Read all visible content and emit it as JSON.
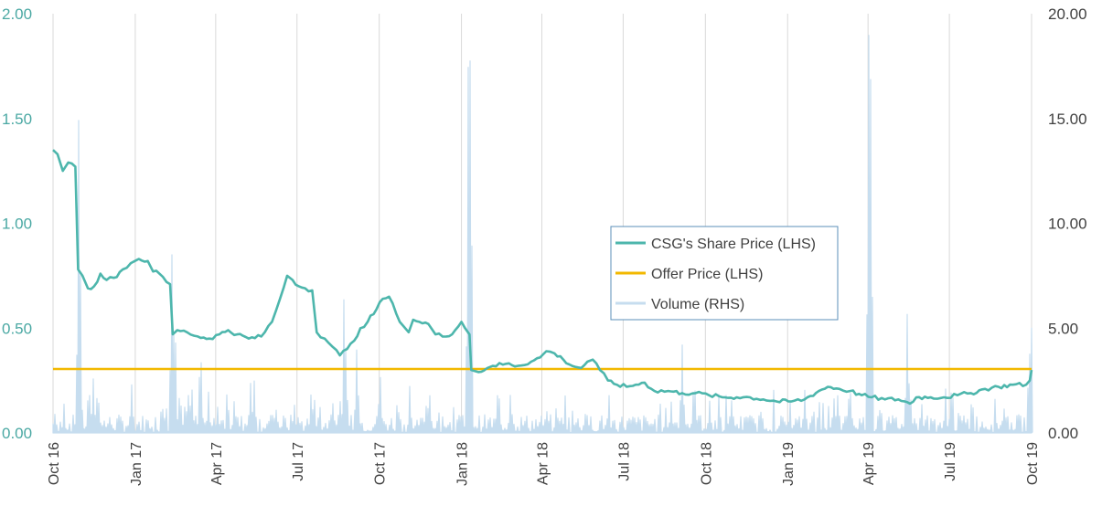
{
  "chart_data": {
    "type": "line",
    "x_axis": {
      "type": "date",
      "start": "2016-10-01",
      "end": "2019-10-01",
      "tick_labels": [
        "Oct 16",
        "Jan 17",
        "Apr 17",
        "Jul 17",
        "Oct 17",
        "Jan 18",
        "Apr 18",
        "Jul 18",
        "Oct 18",
        "Jan 19",
        "Apr 19",
        "Jul 19",
        "Oct 19"
      ],
      "tick_dates": [
        "2016-10-01",
        "2017-01-01",
        "2017-04-01",
        "2017-07-01",
        "2017-10-01",
        "2018-01-01",
        "2018-04-01",
        "2018-07-01",
        "2018-10-01",
        "2019-01-01",
        "2019-04-01",
        "2019-07-01",
        "2019-10-01"
      ],
      "grid": true
    },
    "y_left": {
      "min": 0,
      "max": 2.0,
      "tick_labels": [
        "0.00",
        "0.50",
        "1.00",
        "1.50",
        "2.00"
      ],
      "tick_values": [
        0,
        0.5,
        1.0,
        1.5,
        2.0
      ]
    },
    "y_right": {
      "min": 0,
      "max": 20.0,
      "tick_labels": [
        "0.00",
        "5.00",
        "10.00",
        "15.00",
        "20.00"
      ],
      "tick_values": [
        0,
        5,
        10,
        15,
        20
      ]
    },
    "legend": {
      "position": "center-right",
      "items": [
        {
          "label": "CSG's Share Price (LHS)",
          "color": "#4db6ac"
        },
        {
          "label": "Offer Price (LHS)",
          "color": "#f2b800"
        },
        {
          "label": "Volume (RHS)",
          "color": "#c6ddef"
        }
      ]
    },
    "series": [
      {
        "name": "CSG's Share Price (LHS)",
        "axis": "left",
        "color": "#4db6ac",
        "points": [
          [
            "2016-10-01",
            1.35
          ],
          [
            "2016-10-06",
            1.33
          ],
          [
            "2016-10-12",
            1.25
          ],
          [
            "2016-10-18",
            1.29
          ],
          [
            "2016-10-26",
            1.27
          ],
          [
            "2016-10-29",
            0.78
          ],
          [
            "2016-11-03",
            0.75
          ],
          [
            "2016-11-09",
            0.69
          ],
          [
            "2016-11-16",
            0.7
          ],
          [
            "2016-11-23",
            0.76
          ],
          [
            "2016-11-30",
            0.73
          ],
          [
            "2016-12-08",
            0.74
          ],
          [
            "2016-12-18",
            0.78
          ],
          [
            "2016-12-27",
            0.81
          ],
          [
            "2017-01-05",
            0.83
          ],
          [
            "2017-01-15",
            0.82
          ],
          [
            "2017-01-21",
            0.77
          ],
          [
            "2017-01-28",
            0.76
          ],
          [
            "2017-02-05",
            0.72
          ],
          [
            "2017-02-09",
            0.71
          ],
          [
            "2017-02-12",
            0.47
          ],
          [
            "2017-02-17",
            0.49
          ],
          [
            "2017-02-28",
            0.48
          ],
          [
            "2017-03-12",
            0.46
          ],
          [
            "2017-03-25",
            0.45
          ],
          [
            "2017-04-05",
            0.47
          ],
          [
            "2017-04-15",
            0.49
          ],
          [
            "2017-04-25",
            0.47
          ],
          [
            "2017-05-08",
            0.45
          ],
          [
            "2017-05-22",
            0.46
          ],
          [
            "2017-06-03",
            0.53
          ],
          [
            "2017-06-12",
            0.64
          ],
          [
            "2017-06-20",
            0.75
          ],
          [
            "2017-06-26",
            0.73
          ],
          [
            "2017-07-03",
            0.7
          ],
          [
            "2017-07-10",
            0.69
          ],
          [
            "2017-07-18",
            0.68
          ],
          [
            "2017-07-23",
            0.48
          ],
          [
            "2017-08-01",
            0.45
          ],
          [
            "2017-08-10",
            0.41
          ],
          [
            "2017-08-18",
            0.37
          ],
          [
            "2017-08-26",
            0.4
          ],
          [
            "2017-09-03",
            0.44
          ],
          [
            "2017-09-10",
            0.5
          ],
          [
            "2017-09-18",
            0.53
          ],
          [
            "2017-09-28",
            0.59
          ],
          [
            "2017-10-05",
            0.64
          ],
          [
            "2017-10-12",
            0.65
          ],
          [
            "2017-10-20",
            0.57
          ],
          [
            "2017-10-28",
            0.51
          ],
          [
            "2017-11-03",
            0.48
          ],
          [
            "2017-11-08",
            0.54
          ],
          [
            "2017-11-15",
            0.53
          ],
          [
            "2017-11-25",
            0.52
          ],
          [
            "2017-12-03",
            0.47
          ],
          [
            "2017-12-15",
            0.46
          ],
          [
            "2017-12-25",
            0.49
          ],
          [
            "2018-01-01",
            0.53
          ],
          [
            "2018-01-05",
            0.5
          ],
          [
            "2018-01-10",
            0.47
          ],
          [
            "2018-01-12",
            0.3
          ],
          [
            "2018-01-20",
            0.29
          ],
          [
            "2018-01-30",
            0.31
          ],
          [
            "2018-02-05",
            0.32
          ],
          [
            "2018-02-20",
            0.33
          ],
          [
            "2018-03-05",
            0.32
          ],
          [
            "2018-03-20",
            0.34
          ],
          [
            "2018-03-30",
            0.36
          ],
          [
            "2018-04-06",
            0.39
          ],
          [
            "2018-04-15",
            0.38
          ],
          [
            "2018-04-25",
            0.35
          ],
          [
            "2018-05-05",
            0.32
          ],
          [
            "2018-05-15",
            0.31
          ],
          [
            "2018-05-22",
            0.34
          ],
          [
            "2018-05-28",
            0.35
          ],
          [
            "2018-06-05",
            0.3
          ],
          [
            "2018-06-14",
            0.25
          ],
          [
            "2018-06-24",
            0.23
          ],
          [
            "2018-07-05",
            0.22
          ],
          [
            "2018-07-15",
            0.23
          ],
          [
            "2018-07-25",
            0.24
          ],
          [
            "2018-08-05",
            0.2
          ],
          [
            "2018-08-20",
            0.2
          ],
          [
            "2018-09-05",
            0.19
          ],
          [
            "2018-09-20",
            0.19
          ],
          [
            "2018-10-05",
            0.18
          ],
          [
            "2018-10-20",
            0.17
          ],
          [
            "2018-11-05",
            0.17
          ],
          [
            "2018-11-20",
            0.17
          ],
          [
            "2018-12-05",
            0.16
          ],
          [
            "2018-12-20",
            0.15
          ],
          [
            "2019-01-05",
            0.15
          ],
          [
            "2019-01-20",
            0.16
          ],
          [
            "2019-02-05",
            0.2
          ],
          [
            "2019-02-15",
            0.22
          ],
          [
            "2019-02-28",
            0.21
          ],
          [
            "2019-03-12",
            0.2
          ],
          [
            "2019-03-25",
            0.18
          ],
          [
            "2019-04-05",
            0.17
          ],
          [
            "2019-04-20",
            0.16
          ],
          [
            "2019-05-05",
            0.16
          ],
          [
            "2019-05-18",
            0.14
          ],
          [
            "2019-05-25",
            0.17
          ],
          [
            "2019-06-10",
            0.17
          ],
          [
            "2019-06-25",
            0.17
          ],
          [
            "2019-07-10",
            0.18
          ],
          [
            "2019-07-25",
            0.19
          ],
          [
            "2019-08-10",
            0.21
          ],
          [
            "2019-08-25",
            0.22
          ],
          [
            "2019-09-10",
            0.23
          ],
          [
            "2019-09-25",
            0.23
          ],
          [
            "2019-09-29",
            0.25
          ],
          [
            "2019-10-01",
            0.3
          ]
        ]
      },
      {
        "name": "Offer Price (LHS)",
        "axis": "left",
        "color": "#f2b800",
        "points": [
          [
            "2016-10-01",
            0.305
          ],
          [
            "2019-10-01",
            0.305
          ]
        ]
      },
      {
        "name": "Volume (RHS)",
        "axis": "right",
        "type": "area",
        "color": "#c6ddef",
        "baseline": 0.4,
        "peaks": [
          [
            "2016-10-03",
            0.9
          ],
          [
            "2016-10-30",
            16.8
          ],
          [
            "2016-11-01",
            2.5
          ],
          [
            "2016-11-10",
            2.4
          ],
          [
            "2016-11-15",
            2.6
          ],
          [
            "2016-11-20",
            2.3
          ],
          [
            "2016-12-28",
            2.3
          ],
          [
            "2017-02-01",
            1.2
          ],
          [
            "2017-02-11",
            8.6
          ],
          [
            "2017-02-14",
            6.8
          ],
          [
            "2017-02-20",
            2.2
          ],
          [
            "2017-03-01",
            2.1
          ],
          [
            "2017-03-05",
            2.5
          ],
          [
            "2017-03-15",
            4.5
          ],
          [
            "2017-04-22",
            1.7
          ],
          [
            "2017-05-10",
            2.4
          ],
          [
            "2017-05-14",
            2.6
          ],
          [
            "2017-06-08",
            1.2
          ],
          [
            "2017-06-28",
            1.4
          ],
          [
            "2017-07-20",
            2.0
          ],
          [
            "2017-08-23",
            7.8
          ],
          [
            "2017-09-06",
            4.3
          ],
          [
            "2017-10-02",
            3.0
          ],
          [
            "2018-01-09",
            20.0
          ],
          [
            "2018-01-11",
            20.0
          ],
          [
            "2018-02-25",
            2.0
          ],
          [
            "2018-04-20",
            0.8
          ],
          [
            "2018-09-05",
            4.3
          ],
          [
            "2018-09-25",
            1.0
          ],
          [
            "2019-01-20",
            1.5
          ],
          [
            "2019-03-10",
            1.8
          ],
          [
            "2019-04-02",
            20.0
          ],
          [
            "2019-04-04",
            17.5
          ],
          [
            "2019-04-15",
            1.5
          ],
          [
            "2019-05-15",
            6.0
          ],
          [
            "2019-06-05",
            0.8
          ],
          [
            "2019-07-12",
            1.3
          ],
          [
            "2019-09-01",
            0.6
          ],
          [
            "2019-09-30",
            5.7
          ],
          [
            "2019-10-01",
            5.0
          ]
        ]
      }
    ]
  }
}
